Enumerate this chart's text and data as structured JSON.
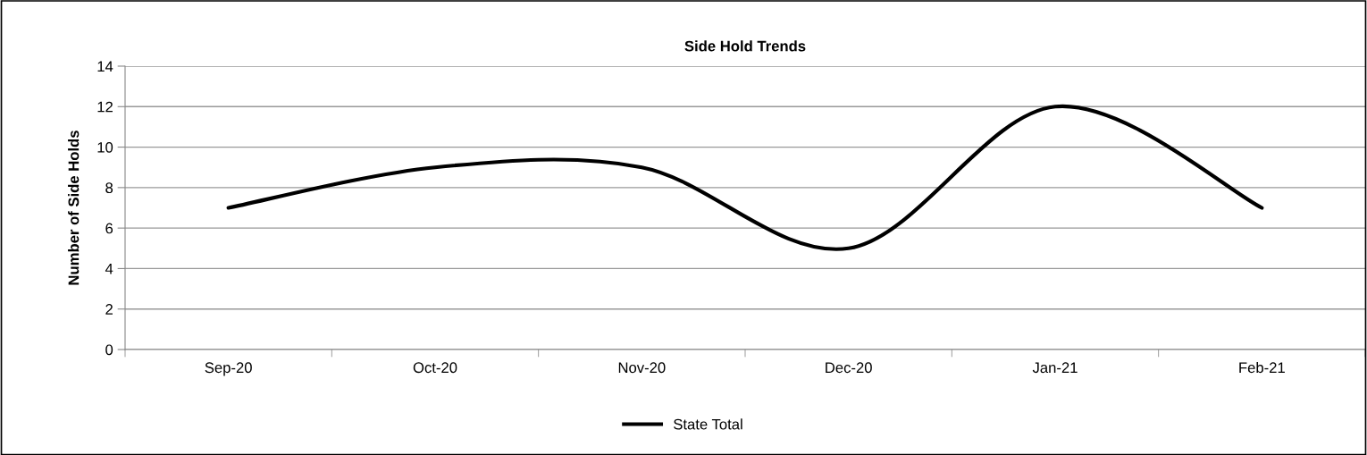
{
  "chart_data": {
    "type": "line",
    "title": "Side Hold Trends",
    "ylabel": "Number of Side Holds",
    "categories": [
      "Sep-20",
      "Oct-20",
      "Nov-20",
      "Dec-20",
      "Jan-21",
      "Feb-21"
    ],
    "series": [
      {
        "name": "State Total",
        "color": "#000000",
        "values": [
          7,
          9,
          9,
          5,
          12,
          7
        ]
      }
    ],
    "ylim": [
      0,
      14
    ],
    "yticks": [
      0,
      2,
      4,
      6,
      8,
      10,
      12,
      14
    ],
    "grid": "y",
    "legend": "bottom",
    "marker": "none",
    "line_style": "solid"
  }
}
